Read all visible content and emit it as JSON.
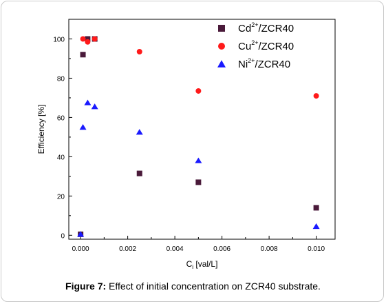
{
  "chart_data": {
    "type": "scatter",
    "xlabel_main": "C",
    "xlabel_sub": "i",
    "xlabel_rest": " [val/L]",
    "ylabel": "Efficiency [%]",
    "xlim": [
      -0.0005,
      0.0108
    ],
    "ylim": [
      -2,
      110
    ],
    "xticks": [
      0.0,
      0.002,
      0.004,
      0.006,
      0.008,
      0.01
    ],
    "xtick_labels": [
      "0.000",
      "0.002",
      "0.004",
      "0.006",
      "0.008",
      "0.010"
    ],
    "yticks": [
      0,
      20,
      40,
      60,
      80,
      100
    ],
    "ytick_labels": [
      "0",
      "20",
      "40",
      "60",
      "80",
      "100"
    ],
    "grid": false,
    "legend_position": "top-right",
    "series": [
      {
        "name_base": "Cd",
        "name_sup": "2+",
        "name_rest": "/ZCR40",
        "marker": "square",
        "color": "#4a1a3a",
        "points": [
          [
            0.0,
            0.5
          ],
          [
            0.0001,
            92
          ],
          [
            0.0003,
            100
          ],
          [
            0.0006,
            100
          ],
          [
            0.0025,
            31.5
          ],
          [
            0.005,
            27
          ],
          [
            0.01,
            14
          ]
        ]
      },
      {
        "name_base": "Cu",
        "name_sup": "2+",
        "name_rest": "/ZCR40",
        "marker": "circle",
        "color": "#ff1a1a",
        "points": [
          [
            0.0001,
            100
          ],
          [
            0.0003,
            98.5
          ],
          [
            0.0006,
            100
          ],
          [
            0.0025,
            93.5
          ],
          [
            0.005,
            73.5
          ],
          [
            0.01,
            71
          ]
        ]
      },
      {
        "name_base": "Ni",
        "name_sup": "2+",
        "name_rest": "/ZCR40",
        "marker": "triangle",
        "color": "#1a1aff",
        "points": [
          [
            0.0,
            0.5
          ],
          [
            0.0001,
            55
          ],
          [
            0.0003,
            67.5
          ],
          [
            0.0006,
            65.5
          ],
          [
            0.0025,
            52.5
          ],
          [
            0.005,
            38
          ],
          [
            0.01,
            4.5
          ]
        ]
      }
    ]
  },
  "caption": {
    "label": "Figure 7:",
    "text": " Effect of initial concentration on ZCR40 substrate."
  }
}
